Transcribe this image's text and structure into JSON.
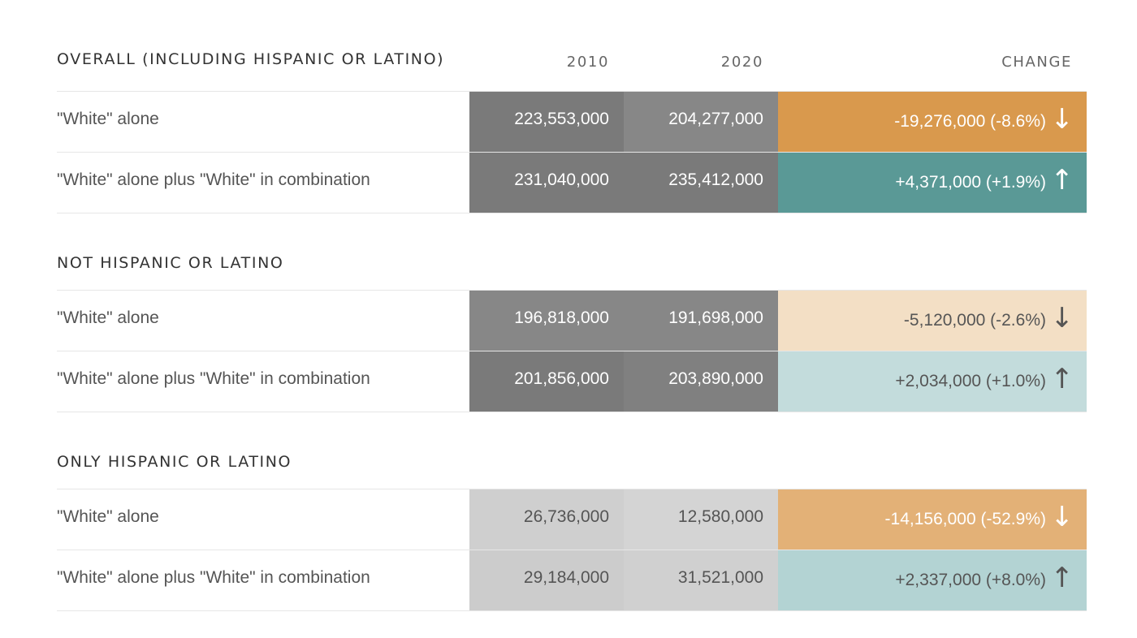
{
  "chart_data": {
    "type": "table",
    "columns": [
      "2010",
      "2020",
      "CHANGE"
    ],
    "sections": [
      {
        "title": "OVERALL (INCLUDING HISPANIC OR LATINO)",
        "rows": [
          {
            "label": "\"White\" alone",
            "y2010": "223,553,000",
            "y2020": "204,277,000",
            "change": "-19,276,000 (-8.6%)",
            "direction": "down",
            "arrow": "↓",
            "colors": {
              "c2010": "#7a7a7a",
              "c2020": "#878787",
              "change": "#d9994d",
              "text": "#ffffff"
            }
          },
          {
            "label": "\"White\" alone plus \"White\" in combination",
            "y2010": "231,040,000",
            "y2020": "235,412,000",
            "change": "+4,371,000 (+1.9%)",
            "direction": "up",
            "arrow": "↑",
            "colors": {
              "c2010": "#7a7a7a",
              "c2020": "#7a7a7a",
              "change": "#5a9996",
              "text": "#ffffff"
            }
          }
        ]
      },
      {
        "title": "NOT HISPANIC OR LATINO",
        "rows": [
          {
            "label": "\"White\" alone",
            "y2010": "196,818,000",
            "y2020": "191,698,000",
            "change": "-5,120,000 (-2.6%)",
            "direction": "down",
            "arrow": "↓",
            "colors": {
              "c2010": "#878787",
              "c2020": "#878787",
              "change": "#f3dfc5",
              "text": "#555555"
            }
          },
          {
            "label": "\"White\" alone plus \"White\" in combination",
            "y2010": "201,856,000",
            "y2020": "203,890,000",
            "change": "+2,034,000 (+1.0%)",
            "direction": "up",
            "arrow": "↑",
            "colors": {
              "c2010": "#7a7a7a",
              "c2020": "#808080",
              "change": "#c3dcdc",
              "text": "#555555"
            }
          }
        ]
      },
      {
        "title": "ONLY HISPANIC OR LATINO",
        "rows": [
          {
            "label": "\"White\" alone",
            "y2010": "26,736,000",
            "y2020": "12,580,000",
            "change": "-14,156,000 (-52.9%)",
            "direction": "down",
            "arrow": "↓",
            "colors": {
              "c2010": "#cfcfcf",
              "c2020": "#d4d4d4",
              "change": "#e3b177",
              "text": "#ffffff"
            }
          },
          {
            "label": "\"White\" alone plus \"White\" in combination",
            "y2010": "29,184,000",
            "y2020": "31,521,000",
            "change": "+2,337,000 (+8.0%)",
            "direction": "up",
            "arrow": "↑",
            "colors": {
              "c2010": "#cccccc",
              "c2020": "#d0d0d0",
              "change": "#b3d3d3",
              "text": "#555555"
            }
          }
        ]
      }
    ]
  },
  "colors": {
    "dark_text": "#555555",
    "light_text": "#ffffff",
    "divider": "#e6e6e6"
  }
}
